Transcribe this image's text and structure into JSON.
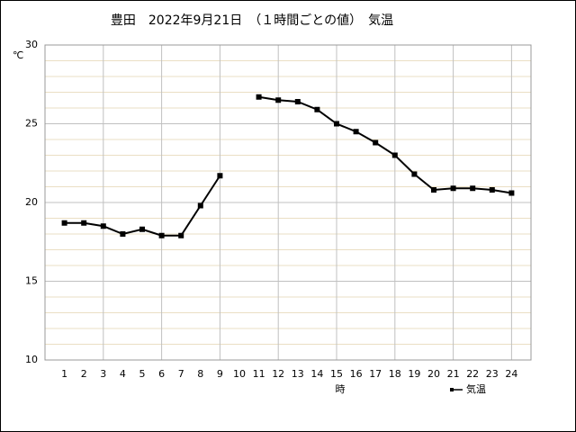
{
  "chart_data": {
    "type": "line",
    "title": "豊田　2022年9月21日　（１時間ごとの値）　気温",
    "y_unit": "℃",
    "x_label": "時",
    "x": [
      1,
      2,
      3,
      4,
      5,
      6,
      7,
      8,
      9,
      10,
      11,
      12,
      13,
      14,
      15,
      16,
      17,
      18,
      19,
      20,
      21,
      22,
      23,
      24
    ],
    "series": [
      {
        "name": "気温",
        "color": "#000000",
        "values": [
          18.7,
          18.7,
          18.5,
          18.0,
          18.3,
          17.9,
          17.9,
          19.8,
          21.7,
          null,
          26.7,
          26.5,
          26.4,
          25.9,
          25.0,
          24.5,
          23.8,
          23.0,
          21.8,
          20.8,
          20.9,
          20.9,
          20.8,
          20.6
        ]
      }
    ],
    "xlim": [
      0,
      25
    ],
    "xticks": [
      1,
      2,
      3,
      4,
      5,
      6,
      7,
      8,
      9,
      10,
      11,
      12,
      13,
      14,
      15,
      16,
      17,
      18,
      19,
      20,
      21,
      22,
      23,
      24
    ],
    "xgrid_step": 3,
    "ylim": [
      10,
      30
    ],
    "yticks": [
      10,
      15,
      20,
      25,
      30
    ],
    "y_minor_step": 1,
    "grid": true,
    "legend": "lower right"
  }
}
